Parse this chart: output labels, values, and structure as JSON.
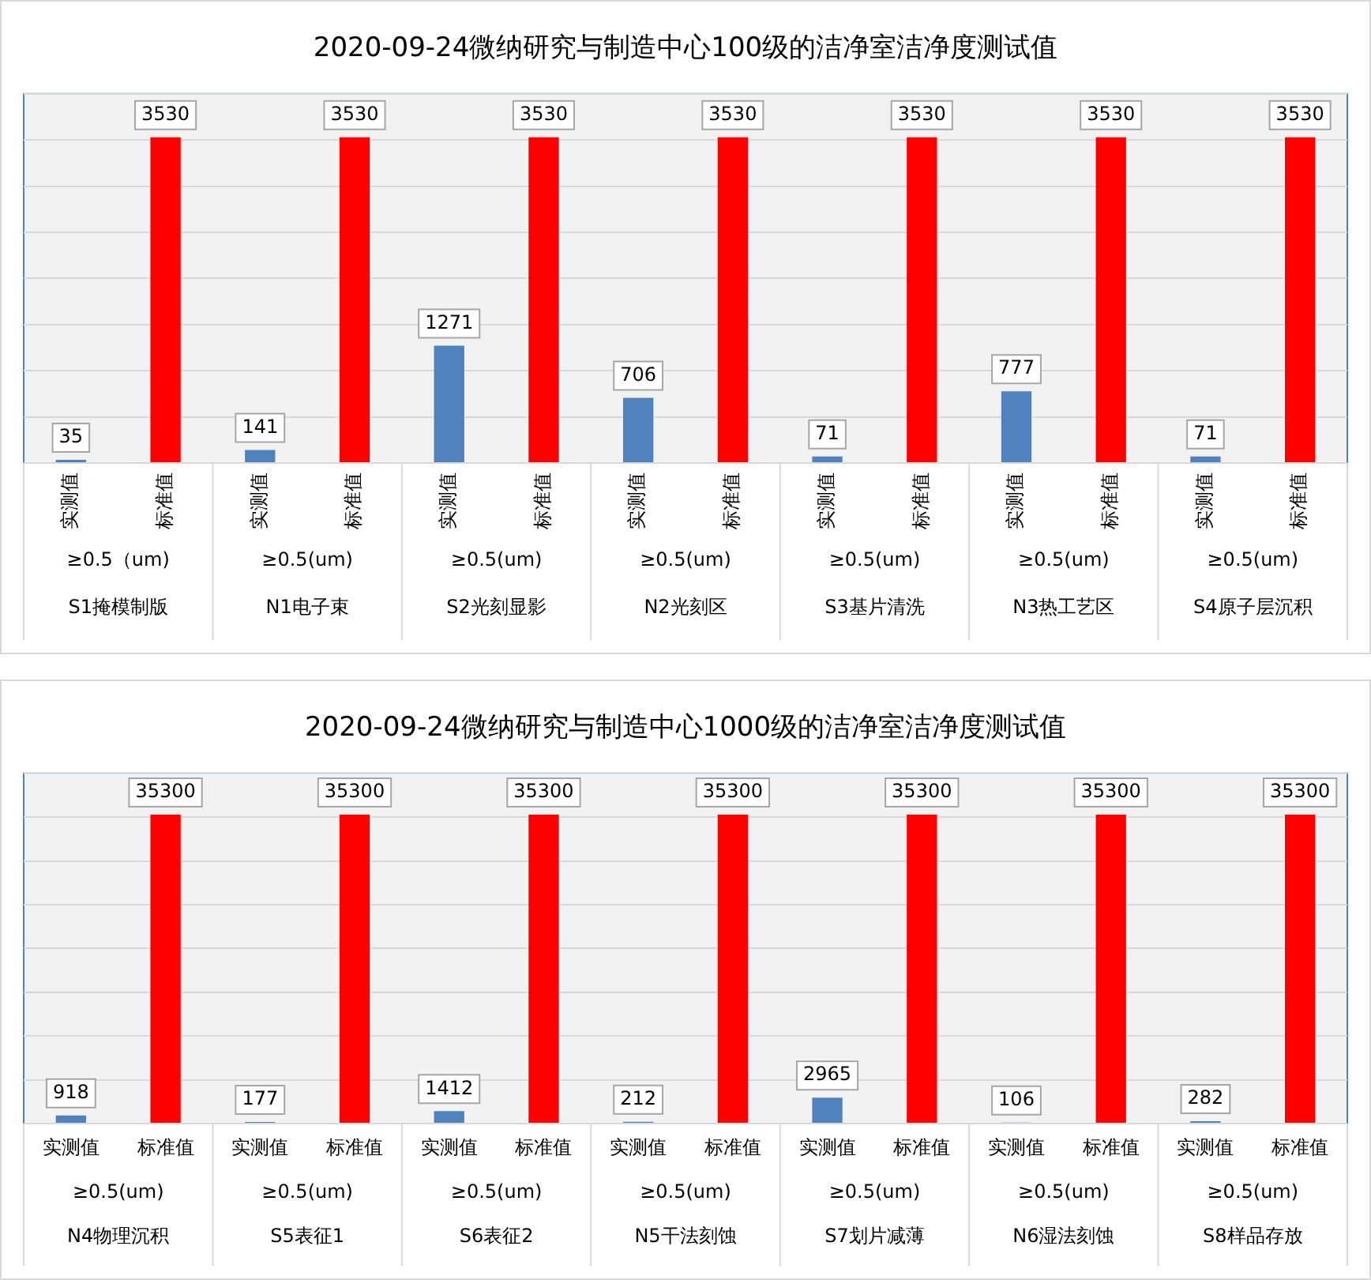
{
  "chart_data": [
    {
      "type": "bar",
      "title": "2020-09-24微纳研究与制造中心100级的洁净室洁净度测试值",
      "categories": [
        "S1掩模制版",
        "N1电子束",
        "S2光刻显影",
        "N2光刻区",
        "S3基片清洗",
        "N3热工艺区",
        "S4原子层沉积"
      ],
      "series": [
        {
          "name": "实测值",
          "color": "#4f81bd",
          "values": [
            35,
            141,
            1271,
            706,
            71,
            777,
            71
          ]
        },
        {
          "name": "标准值",
          "color": "#ff0000",
          "values": [
            3530,
            3530,
            3530,
            3530,
            3530,
            3530,
            3530
          ]
        }
      ],
      "annotations": [
        "≥0.5（um)",
        "≥0.5(um)",
        "≥0.5(um)",
        "≥0.5(um)",
        "≥0.5(um)",
        "≥0.5(um)",
        "≥0.5(um)"
      ],
      "ylim": [
        0,
        4000
      ],
      "yticks": [
        {
          "value": 0,
          "label": null
        },
        {
          "value": 500,
          "label": null
        },
        {
          "value": 1000,
          "label": null
        },
        {
          "value": 1500,
          "label": null
        },
        {
          "value": 2000,
          "label": null
        },
        {
          "value": 2500,
          "label": null
        },
        {
          "value": 3000,
          "label": null
        },
        {
          "value": 3500,
          "label": null
        },
        {
          "value": 4000,
          "label": null
        }
      ],
      "grid": "y",
      "legend": false,
      "data_labels": true,
      "tick_labels": "x"
    },
    {
      "type": "bar",
      "title": "2020-09-24微纳研究与制造中心1000级的洁净室洁净度测试值",
      "categories": [
        "N4物理沉积",
        "S5表征1",
        "S6表征2",
        "N5干法刻蚀",
        "S7划片减薄",
        "N6湿法刻蚀",
        "S8样品存放"
      ],
      "series": [
        {
          "name": "实测值",
          "color": "#4f81bd",
          "values": [
            918,
            177,
            1412,
            212,
            2965,
            106,
            282
          ]
        },
        {
          "name": "标准值",
          "color": "#ff0000",
          "values": [
            35300,
            35300,
            35300,
            35300,
            35300,
            35300,
            35300
          ]
        }
      ],
      "annotations": [
        "≥0.5(um)",
        "≥0.5(um)",
        "≥0.5(um)",
        "≥0.5(um)",
        "≥0.5(um)",
        "≥0.5(um)",
        "≥0.5(um)"
      ],
      "ylim": [
        0,
        40000
      ],
      "yticks": [
        {
          "value": 0,
          "label": null
        },
        {
          "value": 5000,
          "label": null
        },
        {
          "value": 10000,
          "label": null
        },
        {
          "value": 15000,
          "label": null
        },
        {
          "value": 20000,
          "label": null
        },
        {
          "value": 25000,
          "label": null
        },
        {
          "value": 30000,
          "label": null
        },
        {
          "value": 35000,
          "label": null
        },
        {
          "value": 40000,
          "label": null
        }
      ],
      "grid": "y",
      "legend": false,
      "data_labels": true,
      "tick_labels": "x"
    }
  ]
}
